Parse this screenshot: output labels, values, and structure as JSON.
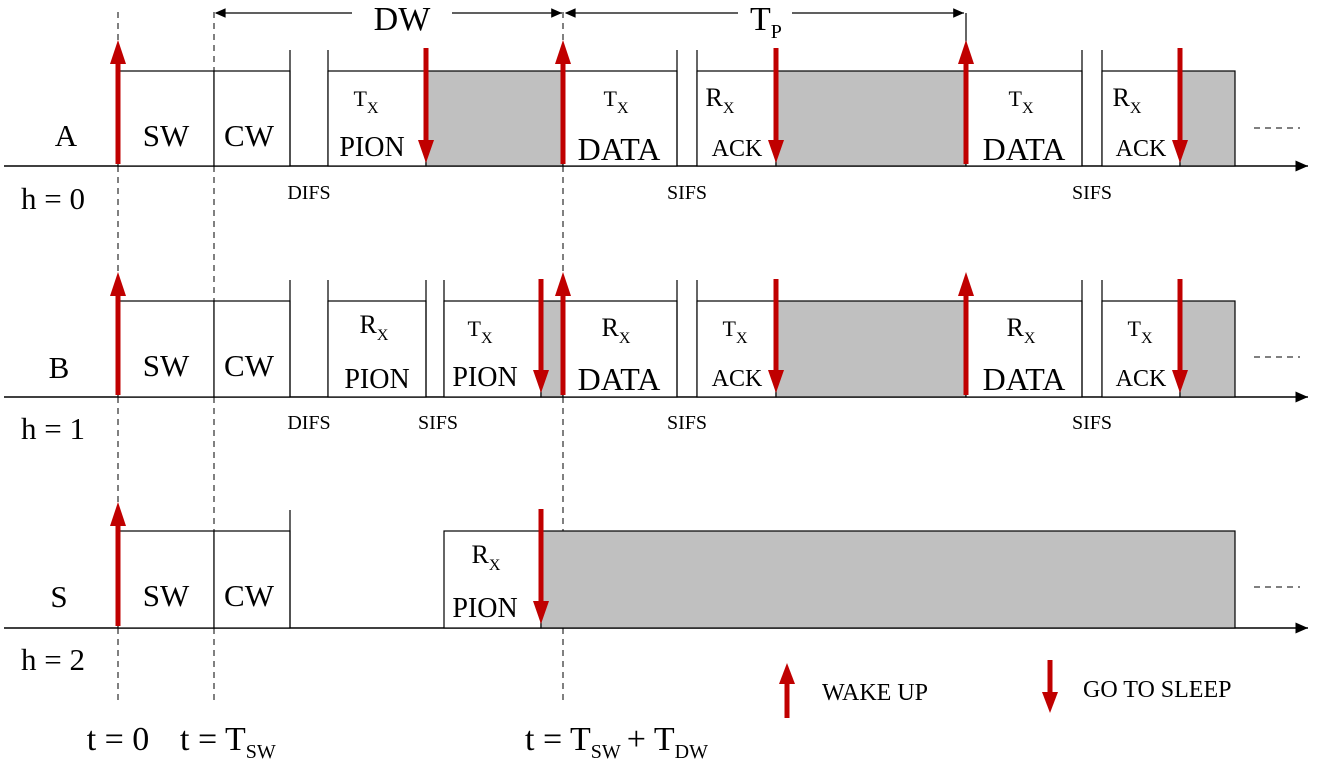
{
  "colors": {
    "arrow": "#c00000",
    "pion": "#008080",
    "data": "#0000ff",
    "ack": "#ff00ff",
    "sleep_fill": "#c0c0c0"
  },
  "durations": {
    "dw": "DW",
    "tp_main": "T",
    "tp_sub": "P"
  },
  "rows": [
    {
      "name": "A",
      "hop": "h = 0",
      "sw": "SW",
      "cw": "CW",
      "slot1": {
        "dir": "T",
        "sub": "X",
        "msg": "PION"
      },
      "slot3": {
        "dir": "T",
        "sub": "X",
        "msg": "DATA"
      },
      "slot4": {
        "dir": "R",
        "sub": "X",
        "msg": "ACK"
      },
      "slot5": {
        "dir": "T",
        "sub": "X",
        "msg": "DATA"
      },
      "slot6": {
        "dir": "R",
        "sub": "X",
        "msg": "ACK"
      },
      "gaps": [
        "DIFS",
        "SIFS",
        "SIFS"
      ]
    },
    {
      "name": "B",
      "hop": "h = 1",
      "sw": "SW",
      "cw": "CW",
      "slot1": {
        "dir": "R",
        "sub": "X",
        "msg": "PION"
      },
      "slot2": {
        "dir": "T",
        "sub": "X",
        "msg": "PION"
      },
      "slot3": {
        "dir": "R",
        "sub": "X",
        "msg": "DATA"
      },
      "slot4": {
        "dir": "T",
        "sub": "X",
        "msg": "ACK"
      },
      "slot5": {
        "dir": "R",
        "sub": "X",
        "msg": "DATA"
      },
      "slot6": {
        "dir": "T",
        "sub": "X",
        "msg": "ACK"
      },
      "gaps": [
        "DIFS",
        "SIFS",
        "SIFS",
        "SIFS"
      ]
    },
    {
      "name": "S",
      "hop": "h = 2",
      "sw": "SW",
      "cw": "CW",
      "slot2": {
        "dir": "R",
        "sub": "X",
        "msg": "PION"
      }
    }
  ],
  "times": {
    "t0": "t = 0",
    "tsw_main": "t = T",
    "tsw_sub": "SW",
    "tdw_a": "t = T",
    "tdw_a_sub": "SW",
    "tdw_plus": "+ T",
    "tdw_b_sub": "DW"
  },
  "legend": {
    "wake": "WAKE UP",
    "sleep": "GO TO SLEEP"
  }
}
